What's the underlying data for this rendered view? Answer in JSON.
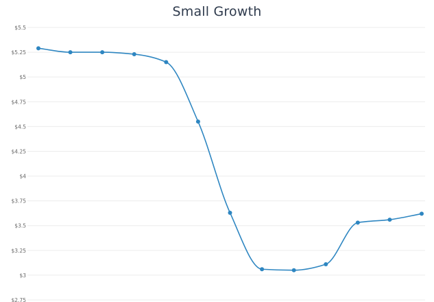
{
  "chart_data": {
    "type": "line",
    "title": "Small Growth",
    "xlabel": "",
    "ylabel": "",
    "ylim": [
      2.75,
      5.5
    ],
    "yticks": [
      "$2.75",
      "$3",
      "$3.25",
      "$3.5",
      "$3.75",
      "$4",
      "$4.25",
      "$4.5",
      "$4.75",
      "$5",
      "$5.25",
      "$5.5"
    ],
    "grid": true,
    "legend": "none",
    "line_color": "#2e86c1",
    "series": [
      {
        "values": [
          5.29,
          5.25,
          5.25,
          5.23,
          5.15,
          4.55,
          3.63,
          3.06,
          3.05,
          3.11,
          3.53,
          3.56,
          3.62
        ]
      }
    ]
  }
}
